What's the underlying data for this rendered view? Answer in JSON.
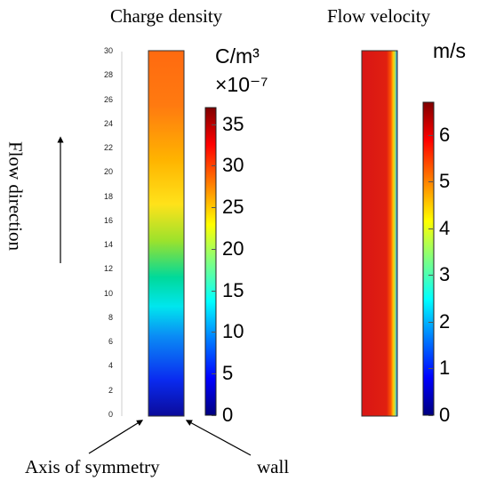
{
  "titles": {
    "charge_density": "Charge density",
    "flow_velocity": "Flow velocity"
  },
  "flow_direction_label": "Flow direction",
  "charge_unit": {
    "line1": "C/m³",
    "line2": "×10⁻⁷"
  },
  "velocity_unit": "m/s",
  "bottom_labels": {
    "axis": "Axis of symmetry",
    "wall": "wall"
  },
  "y_axis_ticks": [
    "0",
    "2",
    "4",
    "6",
    "8",
    "10",
    "12",
    "14",
    "16",
    "18",
    "20",
    "22",
    "24",
    "26",
    "28",
    "30"
  ],
  "charge_colorbar_ticks": [
    "0",
    "5",
    "10",
    "15",
    "20",
    "25",
    "30",
    "35"
  ],
  "velocity_colorbar_ticks": [
    "0",
    "1",
    "2",
    "3",
    "4",
    "5",
    "6"
  ],
  "colormap": [
    "#00007f",
    "#0000ff",
    "#0080ff",
    "#00ffff",
    "#80ff80",
    "#ffff00",
    "#ff8000",
    "#ff0000",
    "#7f0000"
  ]
}
